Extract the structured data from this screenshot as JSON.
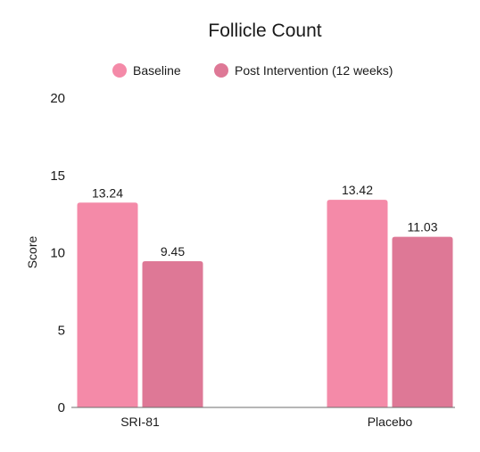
{
  "chart_data": {
    "type": "bar",
    "title": "Follicle Count",
    "xlabel": "",
    "ylabel": "Score",
    "categories": [
      "SRI-81",
      "Placebo"
    ],
    "series": [
      {
        "name": "Baseline",
        "values": [
          13.24,
          13.42
        ],
        "value_labels": [
          "13.24",
          "13.42"
        ],
        "color": "#f48aa8"
      },
      {
        "name": "Post Intervention (12 weeks)",
        "values": [
          9.45,
          11.03
        ],
        "value_labels": [
          "9.45",
          "11.03"
        ],
        "color": "#de7896"
      }
    ],
    "ylim": [
      0,
      20
    ],
    "yticks": [
      "0",
      "5",
      "10",
      "15",
      "20"
    ],
    "grid": false,
    "legend": "top-center"
  }
}
